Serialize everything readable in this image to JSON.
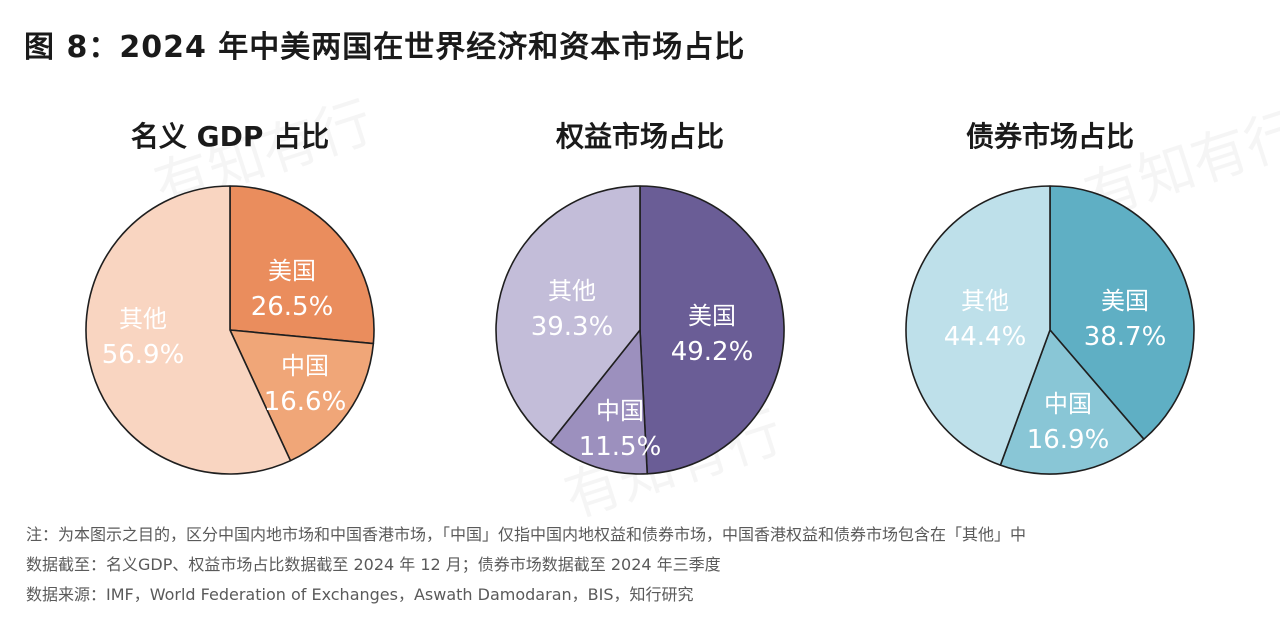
{
  "figure_title": "图 8：2024 年中美两国在世界经济和资本市场占比",
  "watermark_text": "有知有行",
  "chart_data": [
    {
      "type": "pie",
      "title": "名义 GDP 占比",
      "slices": [
        {
          "label": "美国",
          "value": 26.5,
          "display": "26.5%",
          "color": "#EA8D5D"
        },
        {
          "label": "中国",
          "value": 16.6,
          "display": "16.6%",
          "color": "#F0A678"
        },
        {
          "label": "其他",
          "value": 56.9,
          "display": "56.9%",
          "color": "#F9D5C1"
        }
      ]
    },
    {
      "type": "pie",
      "title": "权益市场占比",
      "slices": [
        {
          "label": "美国",
          "value": 49.2,
          "display": "49.2%",
          "color": "#6A5D96"
        },
        {
          "label": "中国",
          "value": 11.5,
          "display": "11.5%",
          "color": "#9C90BE"
        },
        {
          "label": "其他",
          "value": 39.3,
          "display": "39.3%",
          "color": "#C3BDD9"
        }
      ]
    },
    {
      "type": "pie",
      "title": "债券市场占比",
      "slices": [
        {
          "label": "美国",
          "value": 38.7,
          "display": "38.7%",
          "color": "#5FAFC4"
        },
        {
          "label": "中国",
          "value": 16.9,
          "display": "16.9%",
          "color": "#89C6D6"
        },
        {
          "label": "其他",
          "value": 44.4,
          "display": "44.4%",
          "color": "#BEE0EA"
        }
      ]
    }
  ],
  "notes": [
    "注：为本图示之目的，区分中国内地市场和中国香港市场，「中国」仅指中国内地权益和债券市场，中国香港权益和债券市场包含在「其他」中",
    "数据截至：名义GDP、权益市场占比数据截至 2024 年 12 月；债券市场数据截至 2024 年三季度",
    "数据来源：IMF，World Federation of Exchanges，Aswath Damodaran，BIS，知行研究"
  ]
}
